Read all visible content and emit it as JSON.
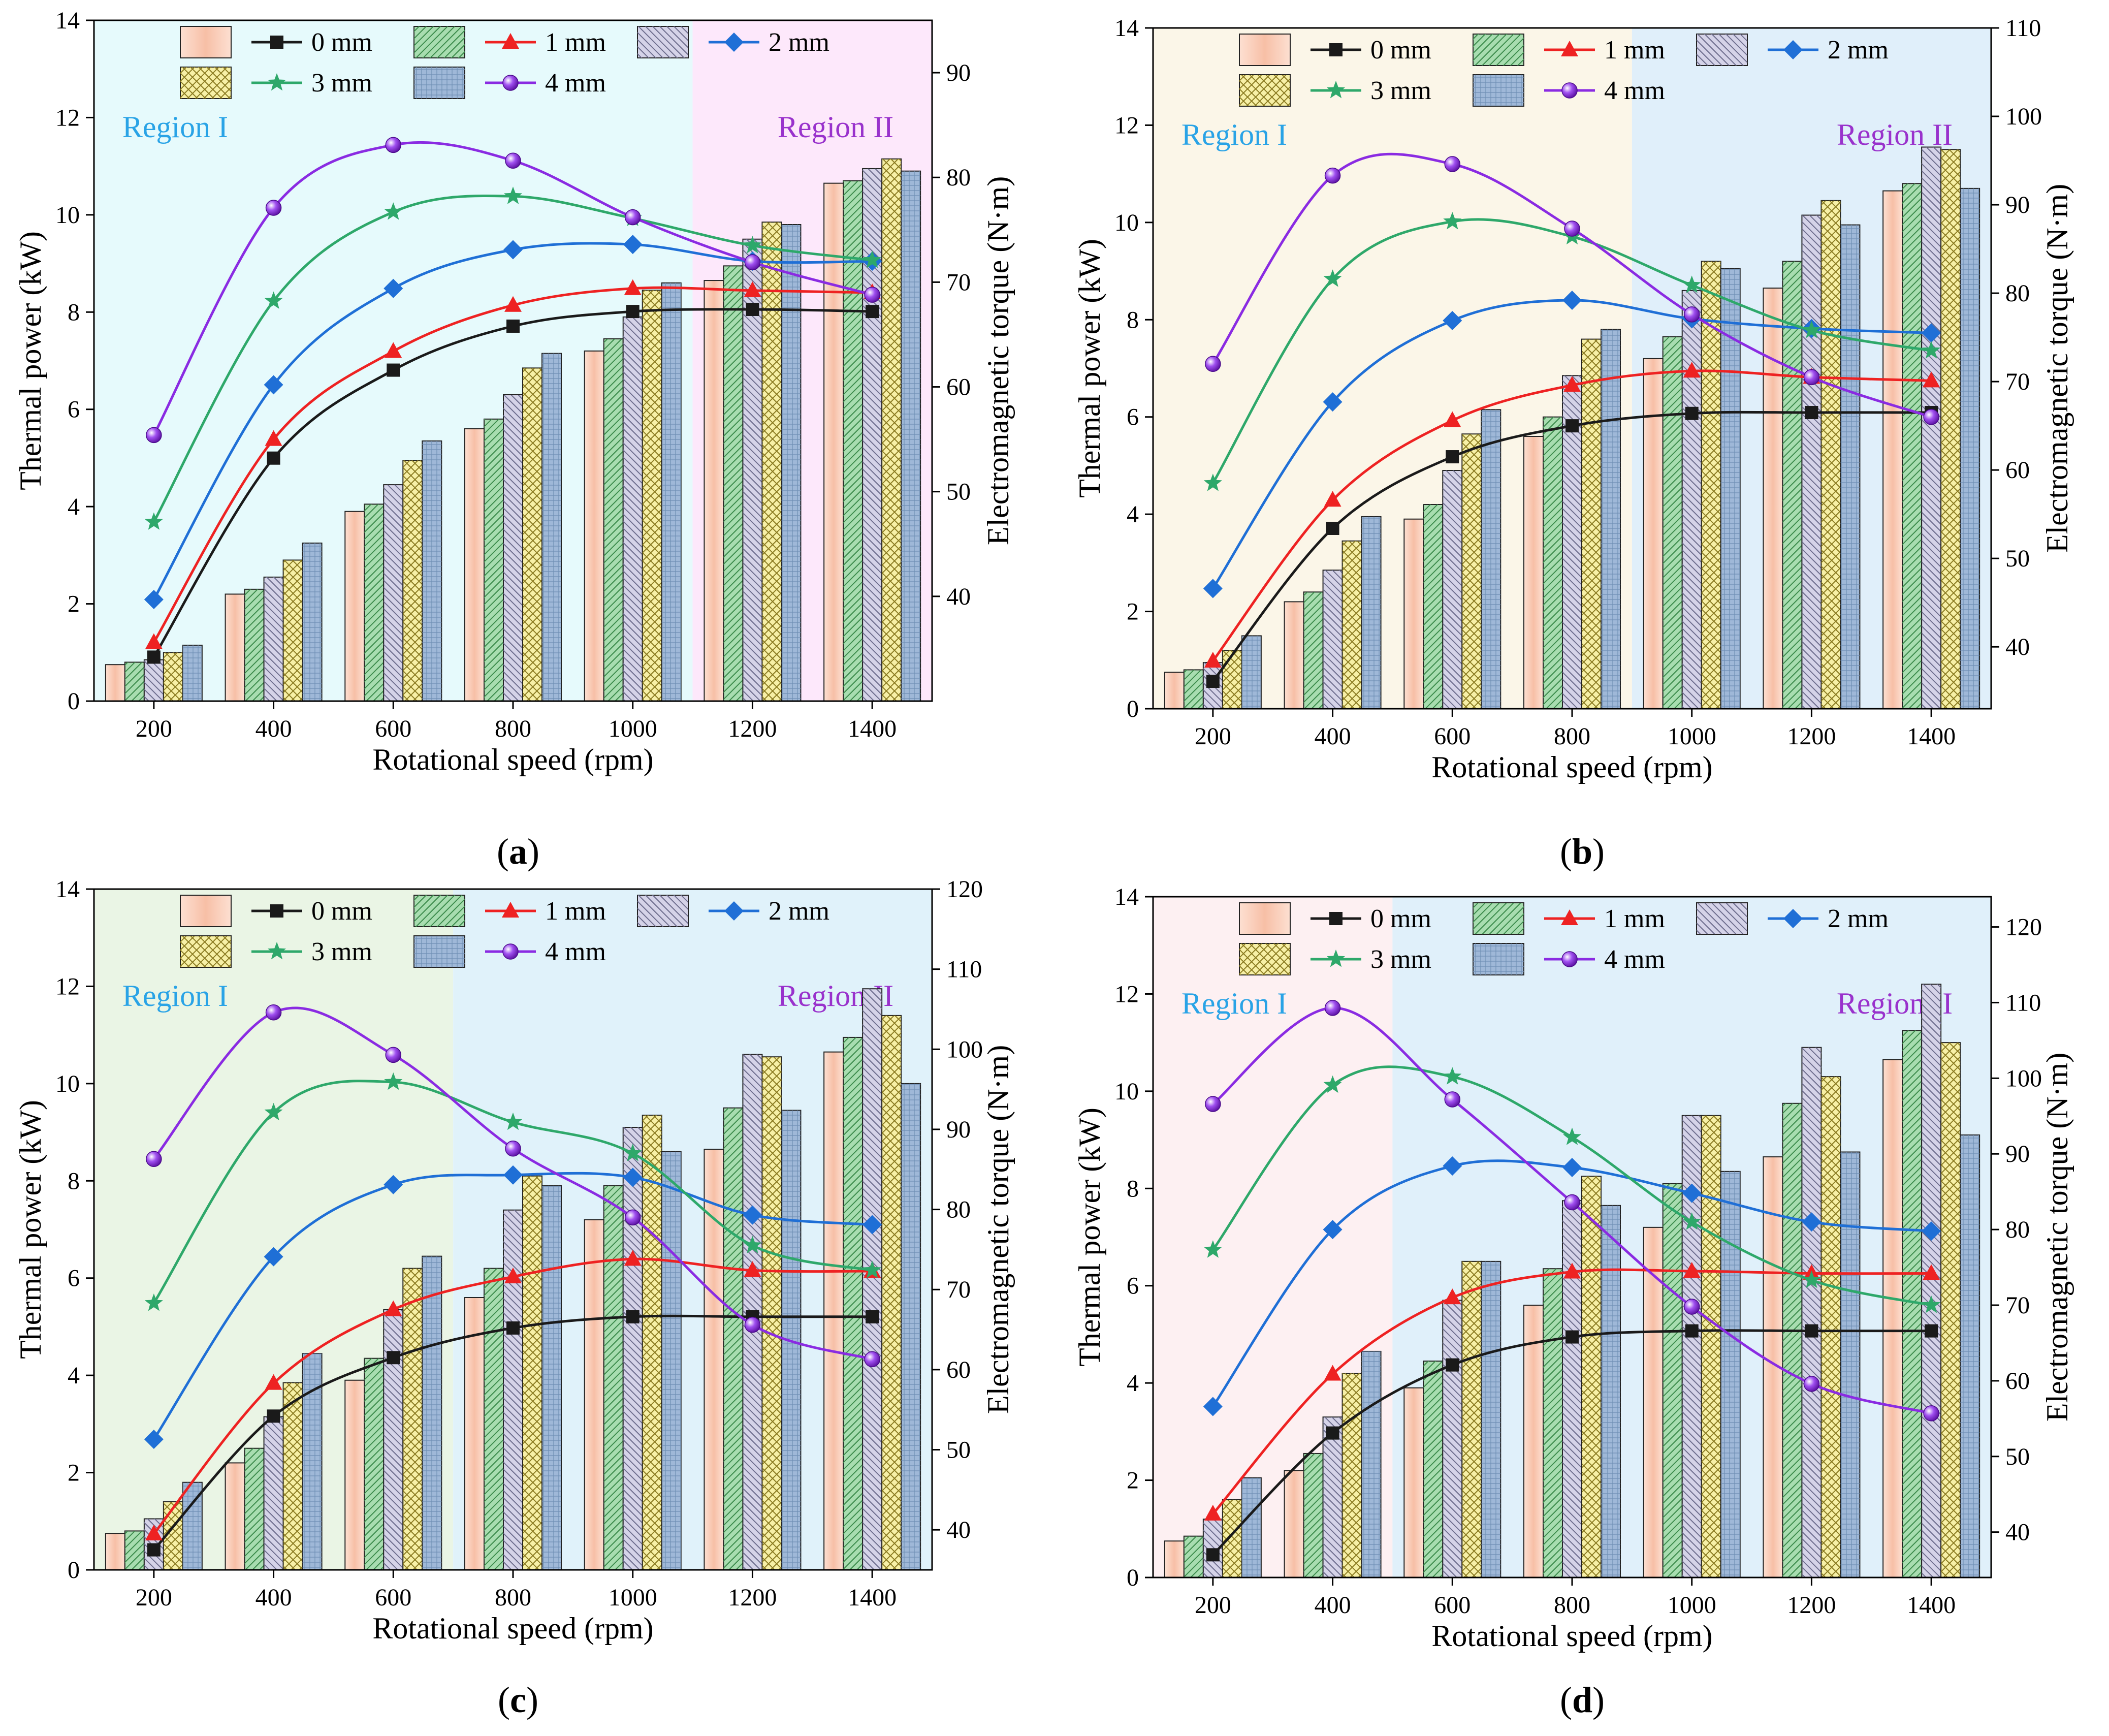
{
  "figure": {
    "legend": {
      "bar_labels": [
        "0 mm",
        "1 mm",
        "2 mm",
        "3 mm",
        "4 mm"
      ],
      "line_labels": [
        "0 mm",
        "1 mm",
        "2 mm",
        "3 mm",
        "4 mm"
      ]
    },
    "series_styles": [
      {
        "name": "0 mm",
        "bar_color": "#f9cdb8",
        "line_color": "#1a1a1a",
        "marker": "square"
      },
      {
        "name": "1 mm",
        "bar_color": "#a8ddb0",
        "line_color": "#ee2222",
        "marker": "triangle"
      },
      {
        "name": "2 mm",
        "bar_color": "#d5d3e8",
        "line_color": "#1f6fd6",
        "marker": "diamond"
      },
      {
        "name": "3 mm",
        "bar_color": "#f7f0a6",
        "line_color": "#2ea86a",
        "marker": "star"
      },
      {
        "name": "4 mm",
        "bar_color": "#9fb8d8",
        "line_color": "#8a2be2",
        "marker": "sphere"
      }
    ]
  },
  "chart_data": [
    {
      "type": "bar+line",
      "panel": "(a)",
      "caption_letter": "a",
      "xlabel": "Rotational speed (rpm)",
      "ylabel_left": "Thermal power (kW)",
      "ylabel_right": "Electromagnetic torque (N·m)",
      "categories": [
        200,
        400,
        600,
        800,
        1000,
        1200,
        1400
      ],
      "ylim_left": [
        0,
        14
      ],
      "ylim_right": [
        30,
        95
      ],
      "yticks_left": [
        0,
        2,
        4,
        6,
        8,
        10,
        12,
        14
      ],
      "yticks_right": [
        40,
        50,
        60,
        70,
        80,
        90
      ],
      "regions": [
        {
          "label": "Region I",
          "from": 100,
          "to": 1100,
          "color": "#e6fafc",
          "text_color": "#29a3e6"
        },
        {
          "label": "Region II",
          "from": 1100,
          "to": 1500,
          "color": "#fde8fb",
          "text_color": "#9932cc"
        }
      ],
      "bar_series": [
        {
          "name": "0 mm",
          "values": [
            0.75,
            2.2,
            3.9,
            5.6,
            7.2,
            8.65,
            10.65
          ]
        },
        {
          "name": "1 mm",
          "values": [
            0.8,
            2.3,
            4.05,
            5.8,
            7.45,
            8.95,
            10.7
          ]
        },
        {
          "name": "2 mm",
          "values": [
            0.85,
            2.55,
            4.45,
            6.3,
            7.9,
            9.5,
            10.95
          ]
        },
        {
          "name": "3 mm",
          "values": [
            1.0,
            2.9,
            4.95,
            6.85,
            8.45,
            9.85,
            11.15
          ]
        },
        {
          "name": "4 mm",
          "values": [
            1.15,
            3.25,
            5.35,
            7.15,
            8.6,
            9.8,
            10.9
          ]
        }
      ],
      "line_series": [
        {
          "name": "0 mm",
          "values": [
            34.2,
            53.2,
            61.6,
            65.8,
            67.2,
            67.4,
            67.2
          ]
        },
        {
          "name": "1 mm",
          "values": [
            35.6,
            55.0,
            63.4,
            67.8,
            69.4,
            69.2,
            69.0
          ]
        },
        {
          "name": "2 mm",
          "values": [
            39.7,
            60.2,
            69.4,
            73.1,
            73.6,
            72.0,
            72.0
          ]
        },
        {
          "name": "3 mm",
          "values": [
            47.1,
            68.2,
            76.7,
            78.2,
            76.1,
            73.5,
            72.1
          ]
        },
        {
          "name": "4 mm",
          "values": [
            55.4,
            77.1,
            83.1,
            81.6,
            76.2,
            71.9,
            68.8
          ]
        }
      ]
    },
    {
      "type": "bar+line",
      "panel": "(b)",
      "caption_letter": "b",
      "xlabel": "Rotational speed (rpm)",
      "ylabel_left": "Thermal power (kW)",
      "ylabel_right": "Electromagnetic torque (N·m)",
      "categories": [
        200,
        400,
        600,
        800,
        1000,
        1200,
        1400
      ],
      "ylim_left": [
        0,
        14
      ],
      "ylim_right": [
        33,
        110
      ],
      "yticks_left": [
        0,
        2,
        4,
        6,
        8,
        10,
        12,
        14
      ],
      "yticks_right": [
        40,
        50,
        60,
        70,
        80,
        90,
        100,
        110
      ],
      "regions": [
        {
          "label": "Region I",
          "from": 100,
          "to": 900,
          "color": "#fbf6e8",
          "text_color": "#29a3e6"
        },
        {
          "label": "Region II",
          "from": 900,
          "to": 1500,
          "color": "#e0effa",
          "text_color": "#9932cc"
        }
      ],
      "bar_series": [
        {
          "name": "0 mm",
          "values": [
            0.75,
            2.2,
            3.9,
            5.6,
            7.2,
            8.65,
            10.65
          ]
        },
        {
          "name": "1 mm",
          "values": [
            0.8,
            2.4,
            4.2,
            6.0,
            7.65,
            9.2,
            10.8
          ]
        },
        {
          "name": "2 mm",
          "values": [
            0.95,
            2.85,
            4.9,
            6.85,
            8.6,
            10.15,
            11.55
          ]
        },
        {
          "name": "3 mm",
          "values": [
            1.2,
            3.45,
            5.65,
            7.6,
            9.2,
            10.45,
            11.5
          ]
        },
        {
          "name": "4 mm",
          "values": [
            1.5,
            3.95,
            6.15,
            7.8,
            9.05,
            9.95,
            10.7
          ]
        }
      ],
      "line_series": [
        {
          "name": "0 mm",
          "values": [
            36.1,
            53.4,
            61.5,
            65.0,
            66.4,
            66.5,
            66.5
          ]
        },
        {
          "name": "1 mm",
          "values": [
            38.4,
            56.6,
            65.6,
            69.6,
            71.2,
            70.5,
            70.1
          ]
        },
        {
          "name": "2 mm",
          "values": [
            46.6,
            67.7,
            76.9,
            79.2,
            77.1,
            76.0,
            75.5
          ]
        },
        {
          "name": "3 mm",
          "values": [
            58.5,
            81.6,
            88.1,
            86.4,
            80.9,
            75.8,
            73.5
          ]
        },
        {
          "name": "4 mm",
          "values": [
            72.0,
            93.3,
            94.6,
            87.3,
            77.6,
            70.5,
            66.0
          ]
        }
      ]
    },
    {
      "type": "bar+line",
      "panel": "(c)",
      "caption_letter": "c",
      "xlabel": "Rotational speed (rpm)",
      "ylabel_left": "Thermal power (kW)",
      "ylabel_right": "Electromagnetic torque (N·m)",
      "categories": [
        200,
        400,
        600,
        800,
        1000,
        1200,
        1400
      ],
      "ylim_left": [
        0,
        14
      ],
      "ylim_right": [
        35,
        120
      ],
      "yticks_left": [
        0,
        2,
        4,
        6,
        8,
        10,
        12,
        14
      ],
      "yticks_right": [
        40,
        50,
        60,
        70,
        80,
        90,
        100,
        110,
        120
      ],
      "regions": [
        {
          "label": "Region I",
          "from": 100,
          "to": 700,
          "color": "#eaf5e5",
          "text_color": "#29a3e6"
        },
        {
          "label": "Region II",
          "from": 700,
          "to": 1500,
          "color": "#e0f2fa",
          "text_color": "#9932cc"
        }
      ],
      "bar_series": [
        {
          "name": "0 mm",
          "values": [
            0.75,
            2.2,
            3.9,
            5.6,
            7.2,
            8.65,
            10.65
          ]
        },
        {
          "name": "1 mm",
          "values": [
            0.8,
            2.5,
            4.35,
            6.2,
            7.9,
            9.5,
            10.95
          ]
        },
        {
          "name": "2 mm",
          "values": [
            1.05,
            3.15,
            5.35,
            7.4,
            9.1,
            10.6,
            11.95
          ]
        },
        {
          "name": "3 mm",
          "values": [
            1.4,
            3.85,
            6.2,
            8.1,
            9.35,
            10.55,
            11.4
          ]
        },
        {
          "name": "4 mm",
          "values": [
            1.8,
            4.45,
            6.45,
            7.9,
            8.6,
            9.45,
            10.0
          ]
        }
      ],
      "line_series": [
        {
          "name": "0 mm",
          "values": [
            37.5,
            54.2,
            61.5,
            65.2,
            66.6,
            66.6,
            66.6
          ]
        },
        {
          "name": "1 mm",
          "values": [
            39.5,
            58.3,
            67.5,
            71.6,
            73.8,
            72.4,
            72.3
          ]
        },
        {
          "name": "2 mm",
          "values": [
            51.3,
            74.1,
            83.1,
            84.3,
            84.0,
            79.3,
            78.1
          ]
        },
        {
          "name": "3 mm",
          "values": [
            68.3,
            92.1,
            95.9,
            90.9,
            87.0,
            75.5,
            72.4
          ]
        },
        {
          "name": "4 mm",
          "values": [
            86.3,
            104.6,
            99.3,
            87.6,
            79.0,
            65.6,
            61.3
          ]
        }
      ]
    },
    {
      "type": "bar+line",
      "panel": "(d)",
      "caption_letter": "d",
      "xlabel": "Rotational speed (rpm)",
      "ylabel_left": "Thermal power (kW)",
      "ylabel_right": "Electromagnetic torque (N·m)",
      "categories": [
        200,
        400,
        600,
        800,
        1000,
        1200,
        1400
      ],
      "ylim_left": [
        0,
        14
      ],
      "ylim_right": [
        34,
        124
      ],
      "yticks_left": [
        0,
        2,
        4,
        6,
        8,
        10,
        12,
        14
      ],
      "yticks_right": [
        40,
        50,
        60,
        70,
        80,
        90,
        100,
        110,
        120
      ],
      "regions": [
        {
          "label": "Region I",
          "from": 100,
          "to": 500,
          "color": "#fdf0f2",
          "text_color": "#29a3e6"
        },
        {
          "label": "Region II",
          "from": 500,
          "to": 1500,
          "color": "#e0f0fa",
          "text_color": "#9932cc"
        }
      ],
      "bar_series": [
        {
          "name": "0 mm",
          "values": [
            0.75,
            2.2,
            3.9,
            5.6,
            7.2,
            8.65,
            10.65
          ]
        },
        {
          "name": "1 mm",
          "values": [
            0.85,
            2.55,
            4.45,
            6.35,
            8.1,
            9.75,
            11.25
          ]
        },
        {
          "name": "2 mm",
          "values": [
            1.2,
            3.3,
            5.7,
            7.75,
            9.5,
            10.9,
            12.2
          ]
        },
        {
          "name": "3 mm",
          "values": [
            1.6,
            4.2,
            6.5,
            8.25,
            9.5,
            10.3,
            11.0
          ]
        },
        {
          "name": "4 mm",
          "values": [
            2.05,
            4.65,
            6.5,
            7.65,
            8.35,
            8.75,
            9.1
          ]
        }
      ],
      "line_series": [
        {
          "name": "0 mm",
          "values": [
            37.0,
            53.1,
            62.1,
            65.8,
            66.6,
            66.6,
            66.6
          ]
        },
        {
          "name": "1 mm",
          "values": [
            42.4,
            60.9,
            71.0,
            74.4,
            74.5,
            74.2,
            74.2
          ]
        },
        {
          "name": "2 mm",
          "values": [
            56.6,
            80.0,
            88.4,
            88.2,
            84.8,
            81.0,
            79.8
          ]
        },
        {
          "name": "3 mm",
          "values": [
            77.3,
            99.1,
            100.2,
            92.2,
            81.0,
            73.3,
            70.0
          ]
        },
        {
          "name": "4 mm",
          "values": [
            96.6,
            109.3,
            97.2,
            83.6,
            69.8,
            59.6,
            55.7
          ]
        }
      ]
    }
  ]
}
